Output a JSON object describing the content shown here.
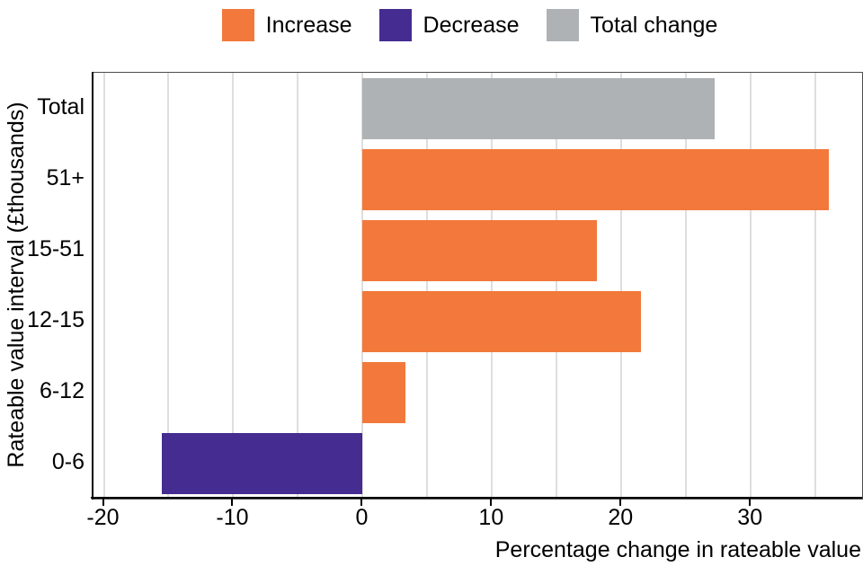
{
  "figure": {
    "background": "#ffffff"
  },
  "legend": {
    "items": [
      {
        "label": "Increase",
        "color": "#F2793B"
      },
      {
        "label": "Decrease",
        "color": "#452C90"
      },
      {
        "label": "Total change",
        "color": "#AEB2B5"
      }
    ]
  },
  "chart_data": {
    "type": "bar",
    "orientation": "horizontal",
    "title": "",
    "xlabel": "Percentage change in rateable value",
    "ylabel": "Rateable value interval (£thousands)",
    "categories": [
      "Total",
      "51+",
      "15-51",
      "12-15",
      "6-12",
      "0-6"
    ],
    "values": [
      27.2,
      36,
      18.1,
      21.5,
      3.3,
      -15.5
    ],
    "bar_series": [
      "Total change",
      "Increase",
      "Increase",
      "Increase",
      "Increase",
      "Decrease"
    ],
    "bar_colors": [
      "#AEB2B5",
      "#F2793B",
      "#F2793B",
      "#F2793B",
      "#F2793B",
      "#452C90"
    ],
    "xlim": [
      -20.8,
      38.6
    ],
    "x_ticks": [
      -20,
      -10,
      0,
      10,
      20,
      30
    ],
    "gridlines": [
      -20,
      -15,
      -10,
      -5,
      0,
      5,
      10,
      15,
      20,
      25,
      30,
      35
    ],
    "grid": "vertical-only",
    "legend_position": "top-center",
    "axis_color": "#000000",
    "gridline_color": "#dedede"
  }
}
